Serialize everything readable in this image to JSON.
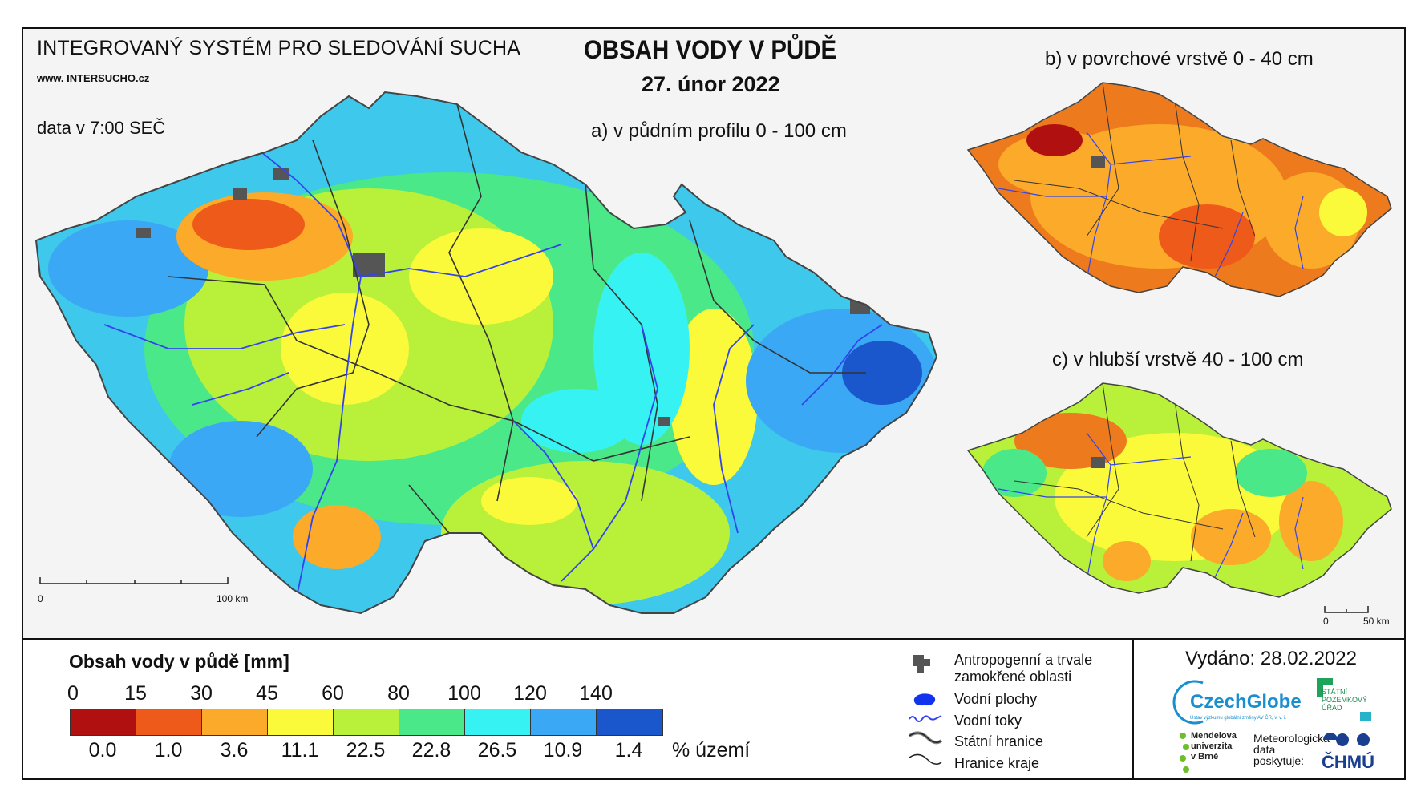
{
  "header": {
    "system_title": "INTEGROVANÝ SYSTÉM PRO SLEDOVÁNÍ SUCHA",
    "website_prefix": "www. INTER",
    "website_highlight": "SUCHO",
    "website_suffix": ".cz",
    "data_time": "data v 7:00 SEČ",
    "main_title": "OBSAH VODY V PŮDĚ",
    "main_date": "27. únor 2022"
  },
  "maps": {
    "main_label": "a) v půdním profilu 0 - 100 cm",
    "surface_label": "b) v povrchové vrstvě 0 - 40 cm",
    "deep_label": "c) v hlubší vrstvě 40 - 100 cm",
    "main_scale": {
      "start": "0",
      "end": "100 km"
    },
    "small_scale": {
      "start": "0",
      "end": "50 km"
    }
  },
  "legend": {
    "title": "Obsah vody v půdě  [mm]",
    "ticks": [
      "0",
      "15",
      "30",
      "45",
      "60",
      "80",
      "100",
      "120",
      "140"
    ],
    "classes": [
      {
        "color": "#b01010",
        "percent": "0.0"
      },
      {
        "color": "#ee5a1a",
        "percent": "1.0"
      },
      {
        "color": "#fbaa2a",
        "percent": "3.6"
      },
      {
        "color": "#fafa3a",
        "percent": "11.1"
      },
      {
        "color": "#b8f03a",
        "percent": "22.5"
      },
      {
        "color": "#4ae888",
        "percent": "22.8"
      },
      {
        "color": "#36f2f2",
        "percent": "26.5"
      },
      {
        "color": "#3aa8f4",
        "percent": "10.9"
      },
      {
        "color": "#1a56cc",
        "percent": "1.4"
      }
    ],
    "percent_unit": "% území",
    "symbols": {
      "anthropogenic_line1": "Antropogenní a trvale",
      "anthropogenic_line2": "zamokřené oblasti",
      "water_bodies": "Vodní plochy",
      "rivers": "Vodní toky",
      "state_border": "Státní hranice",
      "region_border": "Hranice kraje"
    }
  },
  "footer": {
    "issued": "Vydáno: 28.02.2022",
    "czechglobe": "CzechGlobe",
    "czechglobe_sub": "Ústav výzkumu globální změny AV ČR, v. v. i.",
    "spu": "STÁTNÍ\nPOZEMKOVÝ\nÚŘAD",
    "mendel": "Mendelova\nuniverzita\nv Brně",
    "meteo": "Meteorologická\ndata\nposkytuje:",
    "chmu": "ČHMÚ"
  },
  "colors": {
    "river": "#3344ee",
    "urban": "#555555",
    "border": "#333333"
  }
}
